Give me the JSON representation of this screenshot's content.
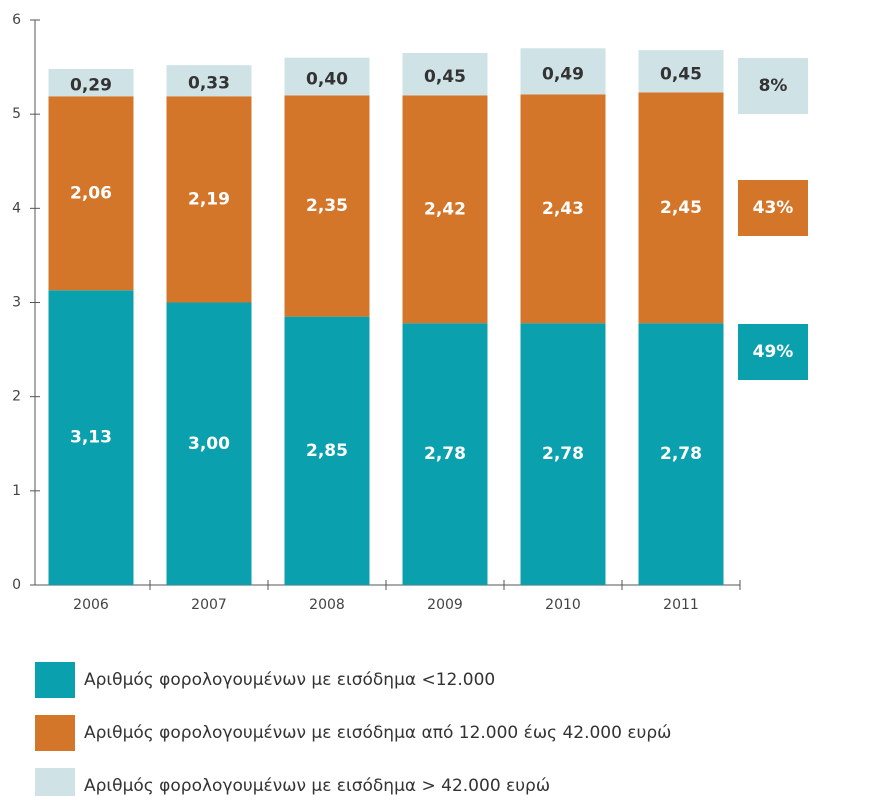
{
  "chart_data": {
    "type": "stacked_bar",
    "categories": [
      "2006",
      "2007",
      "2008",
      "2009",
      "2010",
      "2011"
    ],
    "series": [
      {
        "name": "Αριθμός φορολογουμένων με εισόδημα <12.000",
        "color": "#0aa0ad",
        "values": [
          3.13,
          3.0,
          2.85,
          2.78,
          2.78,
          2.78
        ],
        "value_labels": [
          "3,13",
          "3,00",
          "2,85",
          "2,78",
          "2,78",
          "2,78"
        ],
        "share_label": "49%"
      },
      {
        "name": "Αριθμός φορολογουμένων με εισόδημα από 12.000 έως 42.000 ευρώ",
        "color": "#d4762a",
        "values": [
          2.06,
          2.19,
          2.35,
          2.42,
          2.43,
          2.45
        ],
        "value_labels": [
          "2,06",
          "2,19",
          "2,35",
          "2,42",
          "2,43",
          "2,45"
        ],
        "share_label": "43%"
      },
      {
        "name": "Αριθμός φορολογουμένων με εισόδημα > 42.000 ευρώ",
        "color": "#cfe3e7",
        "values": [
          0.29,
          0.33,
          0.4,
          0.45,
          0.49,
          0.45
        ],
        "value_labels": [
          "0,29",
          "0,33",
          "0,40",
          "0,45",
          "0,49",
          "0,45"
        ],
        "share_label": "8%"
      }
    ],
    "ylim": [
      0,
      6
    ],
    "yticks": [
      0,
      1,
      2,
      3,
      4,
      5,
      6
    ]
  }
}
